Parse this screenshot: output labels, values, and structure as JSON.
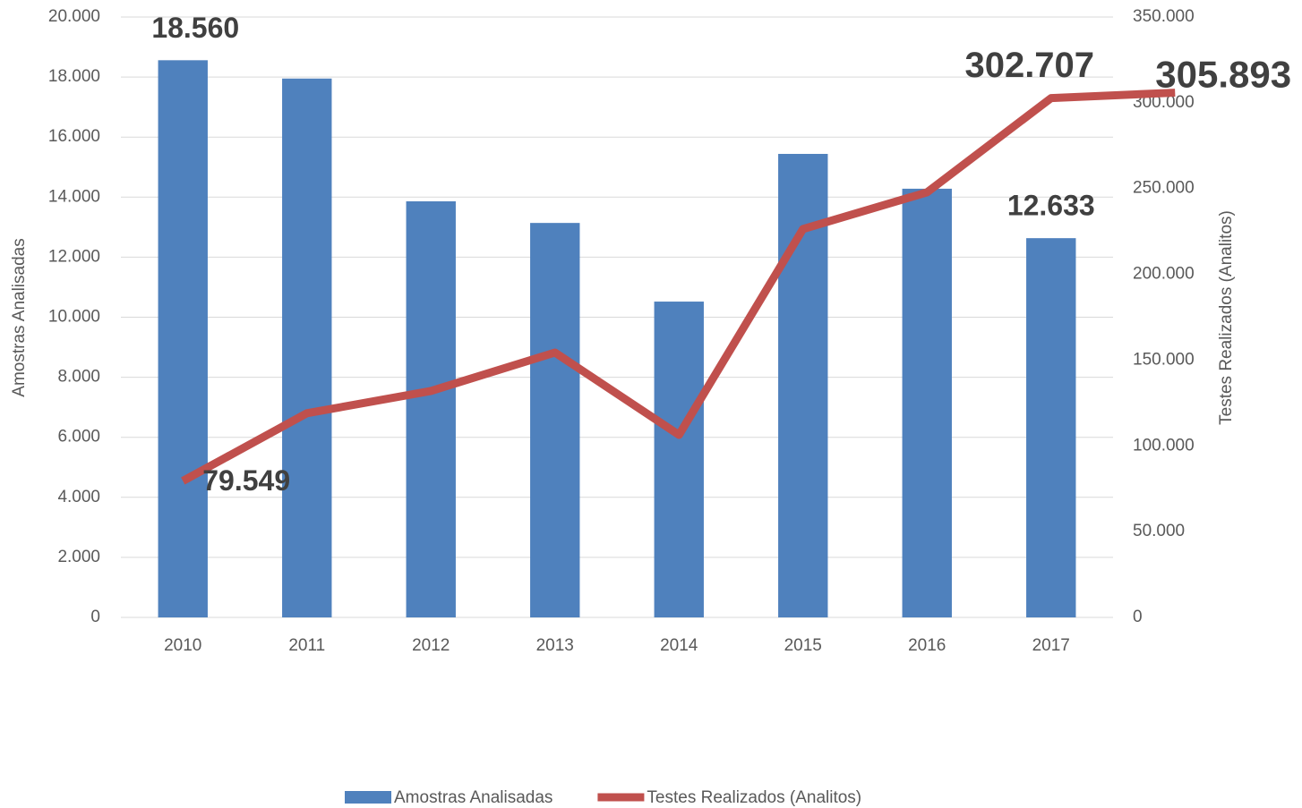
{
  "chart_data": {
    "type": "bar+line",
    "categories": [
      "2010",
      "2011",
      "2012",
      "2013",
      "2014",
      "2015",
      "2016",
      "2017",
      null
    ],
    "ylabel": "Amostras Analisadas",
    "y2label": "Testes Realizados (Analitos)",
    "ylim": [
      0,
      20000
    ],
    "yticks": [
      0,
      {
        "value": 2000,
        "label": "2.000"
      },
      {
        "value": 4000,
        "label": "4.000"
      },
      {
        "value": 6000,
        "label": "6.000"
      },
      {
        "value": 8000,
        "label": "8.000"
      },
      {
        "value": 10000,
        "label": "10.000"
      },
      {
        "value": 12000,
        "label": "12.000"
      },
      {
        "value": 14000,
        "label": "14.000"
      },
      {
        "value": 16000,
        "label": "16.000"
      },
      {
        "value": 18000,
        "label": "18.000"
      },
      {
        "value": 20000,
        "label": "20.000"
      }
    ],
    "y2lim": [
      0,
      350000
    ],
    "y2ticks": [
      0,
      {
        "value": 50000,
        "label": "50.000"
      },
      {
        "value": 100000,
        "label": "100.000"
      },
      {
        "value": 150000,
        "label": "150.000"
      },
      {
        "value": 200000,
        "label": "200.000"
      },
      {
        "value": 250000,
        "label": "250.000"
      },
      {
        "value": 300000,
        "label": "300.000"
      },
      {
        "value": 350000,
        "label": "350.000"
      }
    ],
    "grid": true,
    "legend": "bottom",
    "series": [
      {
        "name": "Amostras Analisadas",
        "type": "bar",
        "color": "#4f81bd",
        "values": [
          18560,
          17950,
          13860,
          13140,
          10520,
          15440,
          14280,
          12633,
          null
        ],
        "value_labels": [
          "18.560",
          null,
          null,
          null,
          null,
          null,
          null,
          "12.633",
          null
        ]
      },
      {
        "name": "Testes Realizados (Analitos)",
        "type": "line",
        "axis": "y2",
        "color": "#c0504d",
        "values": [
          79549,
          119000,
          132000,
          154400,
          106400,
          226400,
          247800,
          302707,
          305893
        ],
        "value_labels": [
          "79.549",
          null,
          null,
          null,
          null,
          null,
          null,
          "302.707",
          "305.893"
        ]
      }
    ]
  }
}
